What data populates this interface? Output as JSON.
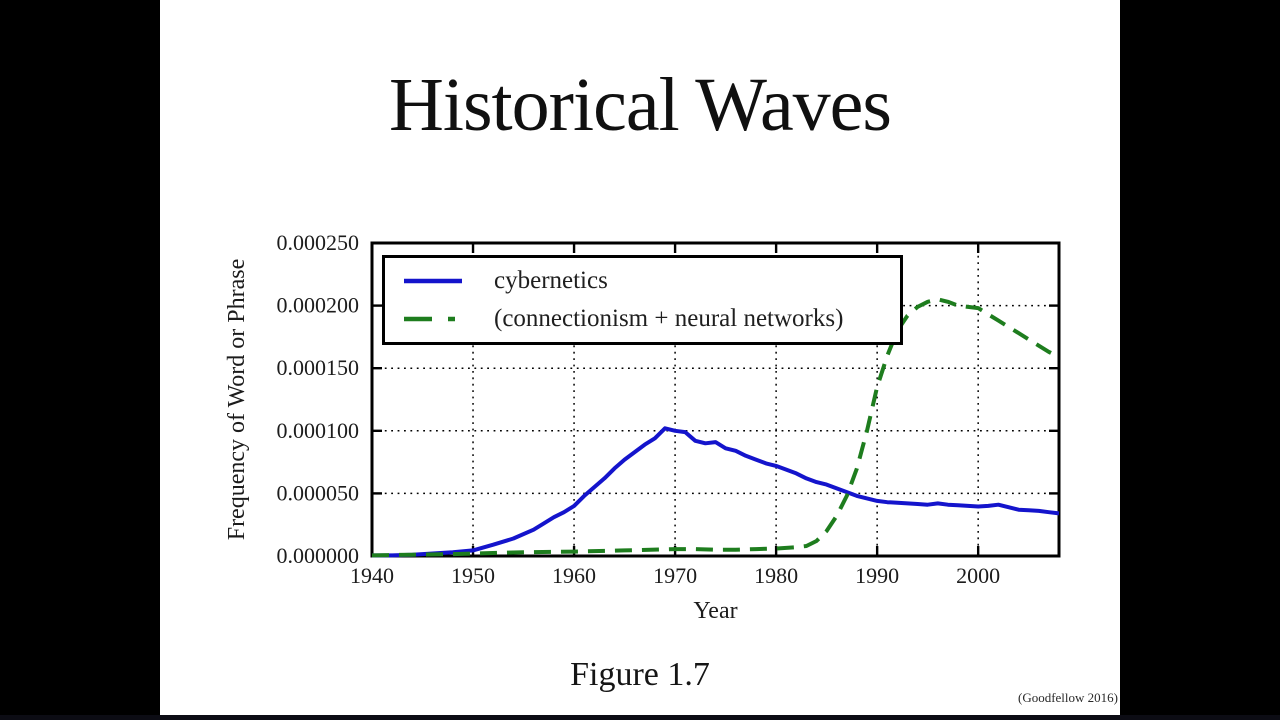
{
  "slide": {
    "title": "Historical Waves",
    "caption": "Figure 1.7",
    "attribution": "(Goodfellow 2016)"
  },
  "colors": {
    "letterbox": "#000000",
    "slide_background": "#ffffff",
    "axis": "#000000",
    "cybernetics_blue": "#1414cc",
    "connectionism_green": "#1e7d1e"
  },
  "chart_data": {
    "type": "line",
    "title": "",
    "xlabel": "Year",
    "ylabel": "Frequency of Word or Phrase",
    "xlim": [
      1940,
      2008
    ],
    "ylim": [
      0,
      0.00025
    ],
    "x_ticks": [
      1940,
      1950,
      1960,
      1970,
      1980,
      1990,
      2000
    ],
    "x_tick_labels": [
      "1940",
      "1950",
      "1960",
      "1970",
      "1980",
      "1990",
      "2000"
    ],
    "y_ticks": [
      0,
      5e-05,
      0.0001,
      0.00015,
      0.0002,
      0.00025
    ],
    "y_tick_labels": [
      "0.000000",
      "0.000050",
      "0.000100",
      "0.000150",
      "0.000200",
      "0.000250"
    ],
    "grid": true,
    "grid_style": "dotted",
    "legend_position": "upper-left",
    "series": [
      {
        "name": "cybernetics",
        "color": "#1414cc",
        "style": "solid",
        "points": [
          [
            1940,
            5e-07
          ],
          [
            1942,
            5e-07
          ],
          [
            1944,
            1e-06
          ],
          [
            1946,
            2e-06
          ],
          [
            1948,
            3e-06
          ],
          [
            1950,
            4.5e-06
          ],
          [
            1952,
            9e-06
          ],
          [
            1954,
            1.4e-05
          ],
          [
            1956,
            2.1e-05
          ],
          [
            1957,
            2.6e-05
          ],
          [
            1958,
            3.1e-05
          ],
          [
            1959,
            3.5e-05
          ],
          [
            1960,
            4e-05
          ],
          [
            1961,
            4.8e-05
          ],
          [
            1962,
            5.5e-05
          ],
          [
            1963,
            6.2e-05
          ],
          [
            1964,
            7e-05
          ],
          [
            1965,
            7.7e-05
          ],
          [
            1966,
            8.3e-05
          ],
          [
            1967,
            8.9e-05
          ],
          [
            1968,
            9.4e-05
          ],
          [
            1969,
            0.000102
          ],
          [
            1970,
            0.0001
          ],
          [
            1971,
            9.9e-05
          ],
          [
            1972,
            9.2e-05
          ],
          [
            1973,
            9e-05
          ],
          [
            1974,
            9.1e-05
          ],
          [
            1975,
            8.6e-05
          ],
          [
            1976,
            8.4e-05
          ],
          [
            1977,
            8e-05
          ],
          [
            1978,
            7.7e-05
          ],
          [
            1979,
            7.4e-05
          ],
          [
            1980,
            7.2e-05
          ],
          [
            1981,
            6.9e-05
          ],
          [
            1982,
            6.6e-05
          ],
          [
            1983,
            6.2e-05
          ],
          [
            1984,
            5.9e-05
          ],
          [
            1985,
            5.7e-05
          ],
          [
            1986,
            5.4e-05
          ],
          [
            1987,
            5.1e-05
          ],
          [
            1988,
            4.8e-05
          ],
          [
            1989,
            4.6e-05
          ],
          [
            1990,
            4.4e-05
          ],
          [
            1991,
            4.3e-05
          ],
          [
            1992,
            4.25e-05
          ],
          [
            1993,
            4.2e-05
          ],
          [
            1994,
            4.15e-05
          ],
          [
            1995,
            4.1e-05
          ],
          [
            1996,
            4.2e-05
          ],
          [
            1997,
            4.1e-05
          ],
          [
            1998,
            4.05e-05
          ],
          [
            1999,
            4e-05
          ],
          [
            2000,
            3.95e-05
          ],
          [
            2001,
            4e-05
          ],
          [
            2002,
            4.1e-05
          ],
          [
            2003,
            3.9e-05
          ],
          [
            2004,
            3.7e-05
          ],
          [
            2005,
            3.65e-05
          ],
          [
            2006,
            3.6e-05
          ],
          [
            2007,
            3.5e-05
          ],
          [
            2008,
            3.4e-05
          ]
        ]
      },
      {
        "name": "(connectionism + neural networks)",
        "color": "#1e7d1e",
        "style": "dashed",
        "points": [
          [
            1940,
            5e-07
          ],
          [
            1944,
            1e-06
          ],
          [
            1948,
            1.5e-06
          ],
          [
            1950,
            2e-06
          ],
          [
            1955,
            3e-06
          ],
          [
            1960,
            3.5e-06
          ],
          [
            1965,
            4.5e-06
          ],
          [
            1970,
            5.5e-06
          ],
          [
            1972,
            5.5e-06
          ],
          [
            1974,
            5e-06
          ],
          [
            1976,
            5e-06
          ],
          [
            1978,
            5.5e-06
          ],
          [
            1980,
            6e-06
          ],
          [
            1982,
            7e-06
          ],
          [
            1983,
            8e-06
          ],
          [
            1984,
            1.2e-05
          ],
          [
            1985,
            2e-05
          ],
          [
            1986,
            3.2e-05
          ],
          [
            1987,
            4.8e-05
          ],
          [
            1988,
            7e-05
          ],
          [
            1989,
            0.0001
          ],
          [
            1990,
            0.000135
          ],
          [
            1991,
            0.00016
          ],
          [
            1992,
            0.00018
          ],
          [
            1993,
            0.000192
          ],
          [
            1994,
            0.000199
          ],
          [
            1995,
            0.000203
          ],
          [
            1996,
            0.000205
          ],
          [
            1997,
            0.000203
          ],
          [
            1998,
            0.0002
          ],
          [
            1999,
            0.000199
          ],
          [
            2000,
            0.000198
          ],
          [
            2001,
            0.000193
          ],
          [
            2002,
            0.000188
          ],
          [
            2003,
            0.000183
          ],
          [
            2004,
            0.000178
          ],
          [
            2005,
            0.000173
          ],
          [
            2006,
            0.000168
          ],
          [
            2007,
            0.000163
          ],
          [
            2008,
            0.000159
          ]
        ]
      }
    ]
  }
}
